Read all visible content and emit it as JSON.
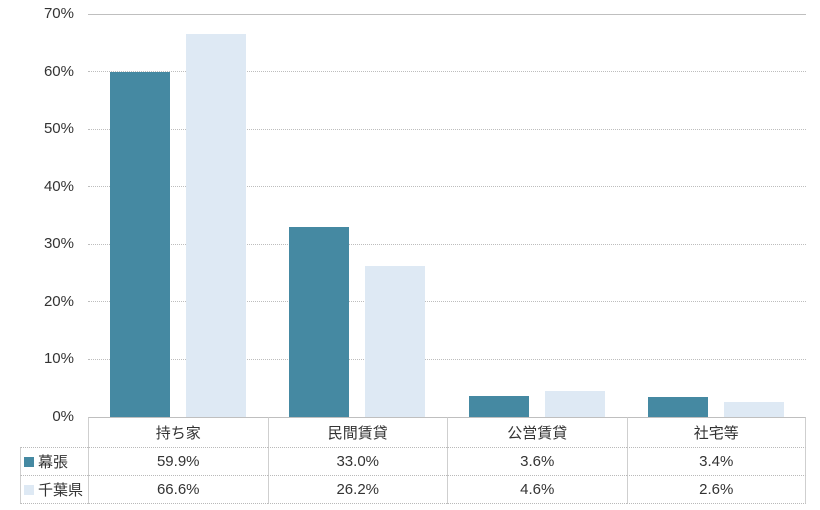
{
  "chart_data": {
    "type": "bar",
    "categories": [
      "持ち家",
      "民間賃貸",
      "公営賃貸",
      "社宅等"
    ],
    "series": [
      {
        "name": "幕張",
        "color": "#4589A2",
        "values": [
          59.9,
          33.0,
          3.6,
          3.4
        ]
      },
      {
        "name": "千葉県",
        "color": "#DEE9F4",
        "values": [
          66.6,
          26.2,
          4.6,
          2.6
        ]
      }
    ],
    "ylim": [
      0,
      70
    ],
    "ytick_step": 10,
    "ytick_labels": [
      "0%",
      "10%",
      "20%",
      "30%",
      "40%",
      "50%",
      "60%",
      "70%"
    ],
    "grid": true,
    "legend_position": "table-row-headers"
  },
  "table": {
    "column_headers": [
      "持ち家",
      "民間賃貸",
      "公営賃貸",
      "社宅等"
    ],
    "row_headers": [
      "幕張",
      "千葉県"
    ],
    "rows": [
      [
        "59.9%",
        "33.0%",
        "3.6%",
        "3.4%"
      ],
      [
        "66.6%",
        "26.2%",
        "4.6%",
        "2.6%"
      ]
    ]
  },
  "colors": {
    "series_makuhari": "#4589A2",
    "series_chiba": "#DEE9F4",
    "gridline": "#BDBDBD",
    "axis_line": "#BFBFBF",
    "table_border": "#CFCFCF",
    "text": "#333333",
    "background": "#FFFFFF"
  }
}
